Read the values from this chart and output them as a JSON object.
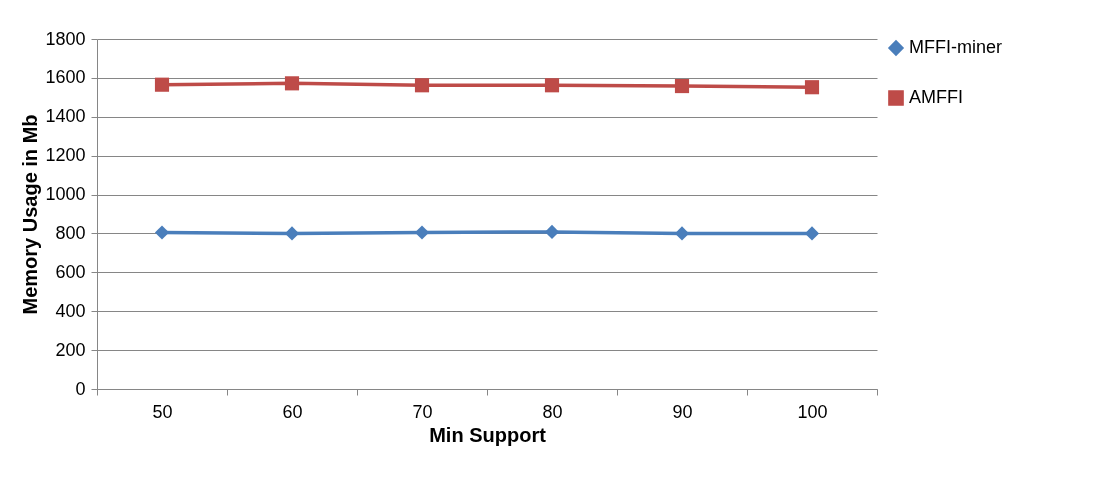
{
  "chart_data": {
    "type": "line",
    "xlabel": "Min Support",
    "ylabel": "Memory Usage in Mb",
    "categories": [
      "50",
      "60",
      "70",
      "80",
      "90",
      "100"
    ],
    "series": [
      {
        "name": "MFFI-miner",
        "color": "#4a7ebb",
        "marker": "diamond",
        "values": [
          805,
          800,
          805,
          808,
          800,
          800
        ]
      },
      {
        "name": "AMFFI",
        "color": "#be4b48",
        "marker": "square",
        "values": [
          1565,
          1572,
          1562,
          1562,
          1558,
          1552
        ]
      }
    ],
    "ylim": [
      0,
      1800
    ],
    "yticks": [
      0,
      200,
      400,
      600,
      800,
      1000,
      1200,
      1400,
      1600,
      1800
    ],
    "grid": "y",
    "legend": "right",
    "line_style": "solid"
  }
}
